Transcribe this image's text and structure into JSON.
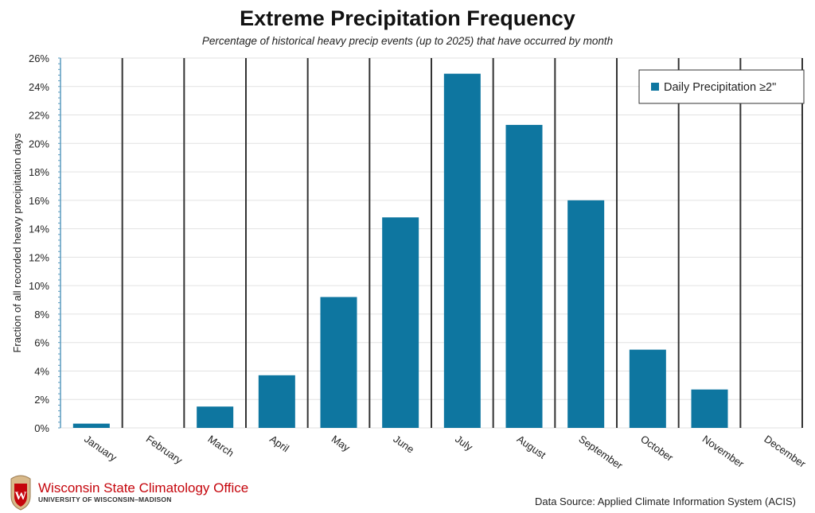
{
  "chart_data": {
    "type": "bar",
    "title": "Extreme Precipitation Frequency",
    "subtitle": "Percentage of historical heavy precip events (up to 2025) that have occurred by month",
    "xlabel": "",
    "ylabel": "Fraction of all recorded heavy precipitation days",
    "ylim": [
      0,
      26
    ],
    "yticks": [
      "0%",
      "2%",
      "4%",
      "6%",
      "8%",
      "10%",
      "12%",
      "14%",
      "16%",
      "18%",
      "20%",
      "22%",
      "24%",
      "26%"
    ],
    "categories": [
      "January",
      "February",
      "March",
      "April",
      "May",
      "June",
      "July",
      "August",
      "September",
      "October",
      "November",
      "December"
    ],
    "series": [
      {
        "name": "Daily Precipitation ≥2\"",
        "values": [
          0.3,
          0,
          1.5,
          3.7,
          9.2,
          14.8,
          24.9,
          21.3,
          16.0,
          5.5,
          2.7,
          0
        ],
        "color": "#0e76a0"
      }
    ],
    "legend": "top-right",
    "grid": true
  },
  "footer": {
    "org_name": "Wisconsin State Climatology Office",
    "org_sub": "UNIVERSITY OF WISCONSIN–MADISON",
    "logo_letter": "W",
    "source": "Data Source: Applied Climate Information System (ACIS)"
  }
}
